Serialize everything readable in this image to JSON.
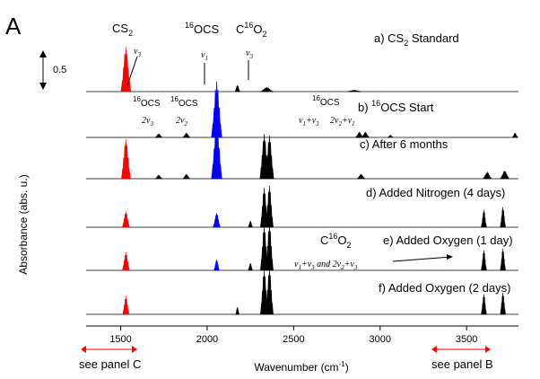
{
  "panel_letter": "A",
  "scale_bar_label": "0.5",
  "note_left": "see panel C",
  "note_right": "see panel B",
  "colors": {
    "cs2": "#ff0000",
    "ocs": "#0000ff",
    "other": "#000000",
    "note_arrow": "#ff0000"
  },
  "peak_labels": {
    "top_cs2": "CS",
    "top_cs2_sub": "2",
    "top_ocs_sup": "16",
    "top_ocs": "OCS",
    "top_co2_c": "C",
    "top_co2_sup": "16",
    "top_co2_o": "O",
    "top_co2_sub": "2",
    "a_v3_cs2": "v",
    "a_v3_cs2_sub": "3",
    "a_v1_ocs": "v",
    "a_v1_ocs_sub": "1",
    "a_v3_co2": "v",
    "a_v3_co2_sub": "3",
    "b_ocs1_sup": "16",
    "b_ocs1": "OCS",
    "b_ocs2_sup": "16",
    "b_ocs2": "OCS",
    "b_ocs3_sup": "16",
    "b_ocs3": "OCS",
    "b_2v3": "2v",
    "b_2v3_sub": "3",
    "b_2v2": "2v",
    "b_2v2_sub": "2",
    "b_combo1_a": "v",
    "b_combo1_a_sub": "1",
    "b_combo1_b": "+v",
    "b_combo1_b_sub": "3",
    "b_combo2_a": "2v",
    "b_combo2_a_sub": "2",
    "b_combo2_b": "+v",
    "b_combo2_b_sub": "1",
    "e_co2_c": "C",
    "e_co2_sup": "16",
    "e_co2_o": "O",
    "e_co2_sub": "2",
    "e_combo_a": "v",
    "e_combo_a_sub": "1",
    "e_combo_b": "+v",
    "e_combo_b_sub": "3",
    "e_combo_c": " and 2v",
    "e_combo_c_sub": "2",
    "e_combo_d": "+v",
    "e_combo_d_sub": "3"
  },
  "chart_data": {
    "type": "line",
    "title": "",
    "xlabel": "Wavenumber (cm",
    "xlabel_sup": "-1",
    "xlabel_end": ")",
    "ylabel": "Absorbance (abs. u.)",
    "xlim": [
      1300,
      3800
    ],
    "x_ticks": [
      1500,
      2000,
      2500,
      3000,
      3500
    ],
    "grid": false,
    "scale_bar_absorbance": 0.5,
    "traces": [
      {
        "label": "a) CS",
        "label_sub": "2",
        "label_end": " Standard",
        "peaks": [
          {
            "x": 1530,
            "height": 0.62,
            "width": 28,
            "color": "cs2"
          },
          {
            "x": 2175,
            "height": 0.09,
            "width": 14,
            "color": "other"
          },
          {
            "x": 2345,
            "height": 0.06,
            "width": 35,
            "color": "other"
          },
          {
            "x": 2850,
            "height": 0.02,
            "width": 40,
            "color": "other"
          }
        ]
      },
      {
        "label": "b) ",
        "label_sup": "16",
        "label_end": "OCS Start",
        "peaks": [
          {
            "x": 1720,
            "height": 0.05,
            "width": 20,
            "color": "other"
          },
          {
            "x": 1880,
            "height": 0.06,
            "width": 20,
            "color": "other"
          },
          {
            "x": 2055,
            "height": 0.78,
            "width": 30,
            "color": "ocs"
          },
          {
            "x": 2880,
            "height": 0.07,
            "width": 22,
            "color": "other"
          },
          {
            "x": 2915,
            "height": 0.07,
            "width": 22,
            "color": "other"
          },
          {
            "x": 3060,
            "height": 0.03,
            "width": 15,
            "color": "other"
          },
          {
            "x": 3780,
            "height": 0.06,
            "width": 15,
            "color": "other"
          }
        ]
      },
      {
        "label": "c) After  6 months",
        "peaks": [
          {
            "x": 1530,
            "height": 0.55,
            "width": 26,
            "color": "cs2"
          },
          {
            "x": 1720,
            "height": 0.05,
            "width": 20,
            "color": "other"
          },
          {
            "x": 1880,
            "height": 0.06,
            "width": 20,
            "color": "other"
          },
          {
            "x": 2055,
            "height": 0.8,
            "width": 30,
            "color": "ocs"
          },
          {
            "x": 2330,
            "height": 0.62,
            "width": 25,
            "color": "other"
          },
          {
            "x": 2360,
            "height": 0.6,
            "width": 25,
            "color": "other"
          },
          {
            "x": 2890,
            "height": 0.06,
            "width": 22,
            "color": "other"
          },
          {
            "x": 3620,
            "height": 0.09,
            "width": 25,
            "color": "other"
          },
          {
            "x": 3720,
            "height": 0.11,
            "width": 25,
            "color": "other"
          }
        ]
      },
      {
        "label": "d) Added Nitrogen (4 days)",
        "peaks": [
          {
            "x": 1530,
            "height": 0.22,
            "width": 20,
            "color": "cs2"
          },
          {
            "x": 2055,
            "height": 0.2,
            "width": 20,
            "color": "ocs"
          },
          {
            "x": 2250,
            "height": 0.09,
            "width": 12,
            "color": "other"
          },
          {
            "x": 2330,
            "height": 0.55,
            "width": 22,
            "color": "other"
          },
          {
            "x": 2360,
            "height": 0.58,
            "width": 22,
            "color": "other"
          },
          {
            "x": 3600,
            "height": 0.24,
            "width": 15,
            "color": "other"
          },
          {
            "x": 3710,
            "height": 0.28,
            "width": 15,
            "color": "other"
          }
        ]
      },
      {
        "label": "e) Added Oxygen (1 day)",
        "peaks": [
          {
            "x": 1530,
            "height": 0.25,
            "width": 20,
            "color": "cs2"
          },
          {
            "x": 2055,
            "height": 0.15,
            "width": 15,
            "color": "ocs"
          },
          {
            "x": 2250,
            "height": 0.1,
            "width": 12,
            "color": "other"
          },
          {
            "x": 2330,
            "height": 0.62,
            "width": 22,
            "color": "other"
          },
          {
            "x": 2360,
            "height": 0.64,
            "width": 22,
            "color": "other"
          },
          {
            "x": 3600,
            "height": 0.28,
            "width": 15,
            "color": "other"
          },
          {
            "x": 3710,
            "height": 0.3,
            "width": 15,
            "color": "other"
          }
        ]
      },
      {
        "label": "f) Added Oxygen (2 days)",
        "peaks": [
          {
            "x": 1530,
            "height": 0.25,
            "width": 18,
            "color": "cs2"
          },
          {
            "x": 2175,
            "height": 0.1,
            "width": 10,
            "color": "other"
          },
          {
            "x": 2330,
            "height": 0.62,
            "width": 22,
            "color": "other"
          },
          {
            "x": 2360,
            "height": 0.64,
            "width": 22,
            "color": "other"
          },
          {
            "x": 3600,
            "height": 0.28,
            "width": 15,
            "color": "other"
          },
          {
            "x": 3710,
            "height": 0.3,
            "width": 15,
            "color": "other"
          }
        ]
      }
    ]
  }
}
